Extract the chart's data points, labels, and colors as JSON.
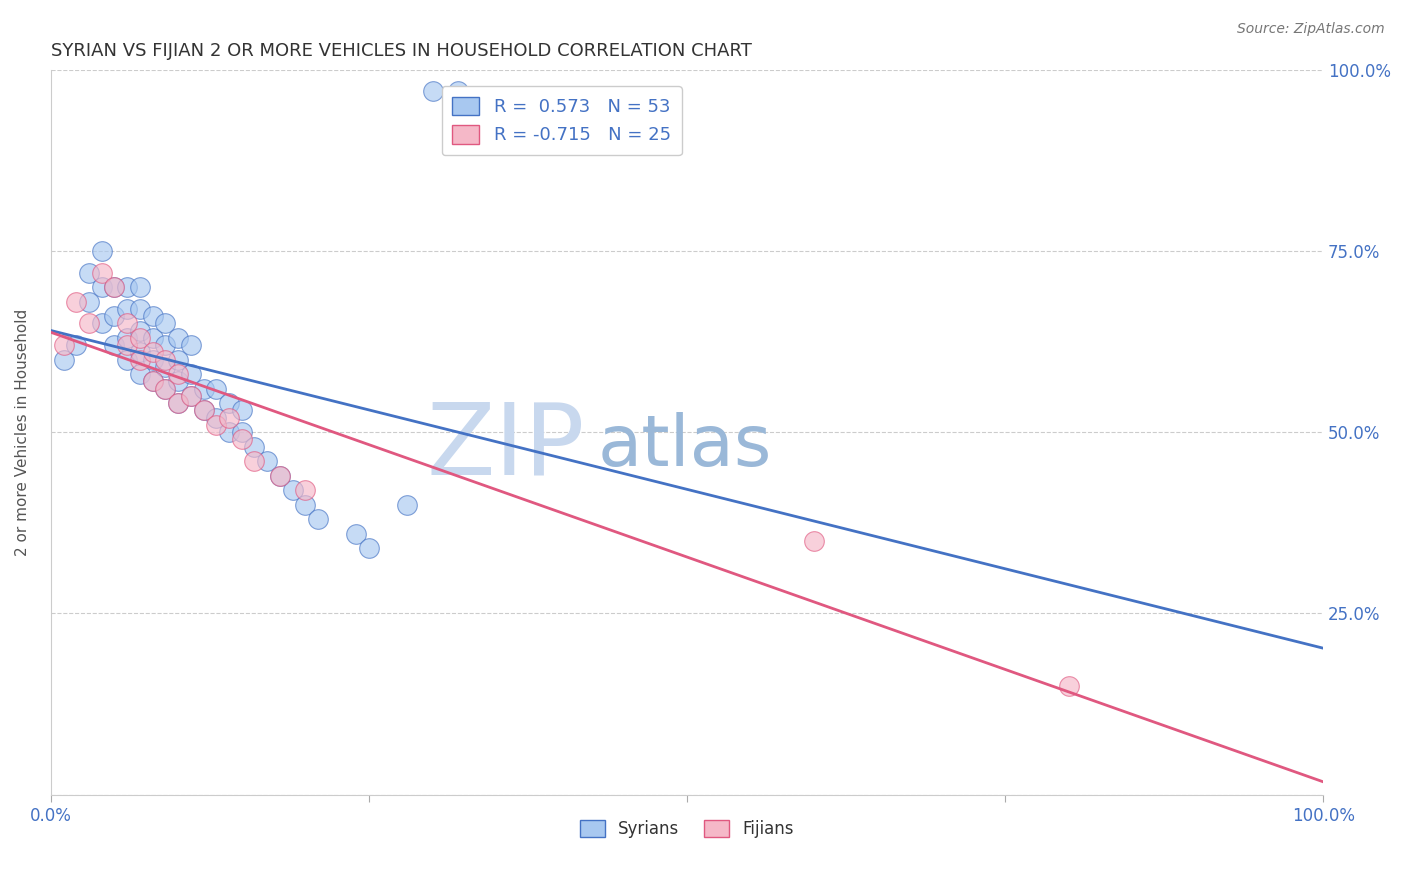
{
  "title": "SYRIAN VS FIJIAN 2 OR MORE VEHICLES IN HOUSEHOLD CORRELATION CHART",
  "source": "Source: ZipAtlas.com",
  "ylabel": "2 or more Vehicles in Household",
  "xlim": [
    0,
    1
  ],
  "ylim": [
    0,
    1
  ],
  "syrian_R": 0.573,
  "syrian_N": 53,
  "fijian_R": -0.715,
  "fijian_N": 25,
  "syrian_color": "#A8C8F0",
  "fijian_color": "#F5B8C8",
  "syrian_line_color": "#4472C4",
  "fijian_line_color": "#E05880",
  "text_color": "#4472C4",
  "watermark_zip_color": "#C8D8EE",
  "watermark_atlas_color": "#9AB8D8",
  "background_color": "#FFFFFF",
  "grid_color": "#CCCCCC",
  "syrian_x": [
    0.01,
    0.02,
    0.03,
    0.03,
    0.04,
    0.04,
    0.04,
    0.05,
    0.05,
    0.05,
    0.06,
    0.06,
    0.06,
    0.06,
    0.07,
    0.07,
    0.07,
    0.07,
    0.07,
    0.08,
    0.08,
    0.08,
    0.08,
    0.09,
    0.09,
    0.09,
    0.09,
    0.1,
    0.1,
    0.1,
    0.1,
    0.11,
    0.11,
    0.11,
    0.12,
    0.12,
    0.13,
    0.13,
    0.14,
    0.14,
    0.15,
    0.15,
    0.16,
    0.17,
    0.18,
    0.19,
    0.2,
    0.21,
    0.24,
    0.25,
    0.28,
    0.3,
    0.32
  ],
  "syrian_y": [
    0.6,
    0.62,
    0.68,
    0.72,
    0.65,
    0.7,
    0.75,
    0.62,
    0.66,
    0.7,
    0.6,
    0.63,
    0.67,
    0.7,
    0.58,
    0.61,
    0.64,
    0.67,
    0.7,
    0.57,
    0.6,
    0.63,
    0.66,
    0.56,
    0.59,
    0.62,
    0.65,
    0.54,
    0.57,
    0.6,
    0.63,
    0.55,
    0.58,
    0.62,
    0.53,
    0.56,
    0.52,
    0.56,
    0.5,
    0.54,
    0.5,
    0.53,
    0.48,
    0.46,
    0.44,
    0.42,
    0.4,
    0.38,
    0.36,
    0.34,
    0.4,
    0.97,
    0.97
  ],
  "fijian_x": [
    0.01,
    0.02,
    0.03,
    0.04,
    0.05,
    0.06,
    0.06,
    0.07,
    0.07,
    0.08,
    0.08,
    0.09,
    0.09,
    0.1,
    0.1,
    0.11,
    0.12,
    0.13,
    0.14,
    0.15,
    0.16,
    0.18,
    0.2,
    0.6,
    0.8
  ],
  "fijian_y": [
    0.62,
    0.68,
    0.65,
    0.72,
    0.7,
    0.62,
    0.65,
    0.6,
    0.63,
    0.57,
    0.61,
    0.56,
    0.6,
    0.54,
    0.58,
    0.55,
    0.53,
    0.51,
    0.52,
    0.49,
    0.46,
    0.44,
    0.42,
    0.35,
    0.15
  ]
}
